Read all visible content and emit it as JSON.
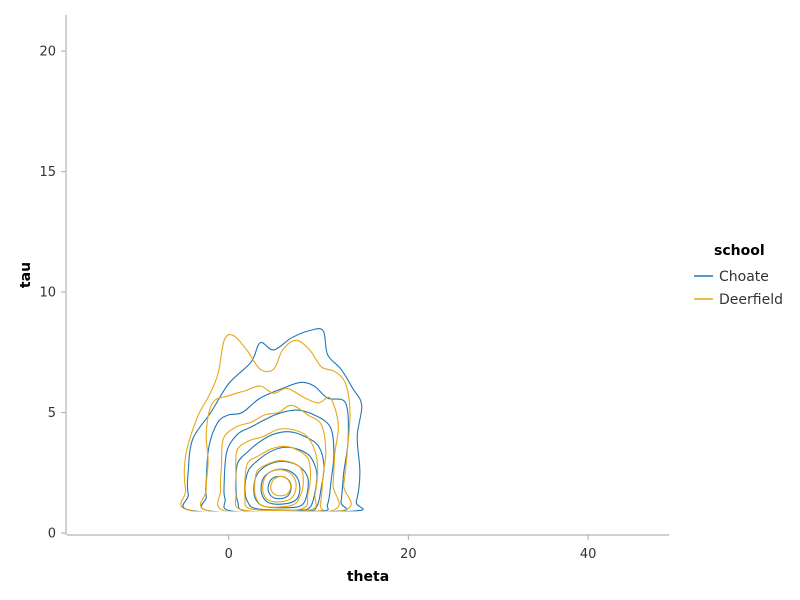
{
  "chart_data": {
    "type": "contour",
    "xlabel": "theta",
    "ylabel": "tau",
    "xlim": [
      -18,
      49
    ],
    "ylim": [
      0,
      21.5
    ],
    "x_ticks": [
      0,
      20,
      40
    ],
    "y_ticks": [
      0,
      5,
      10,
      15,
      20
    ],
    "grid": false,
    "legend": {
      "title": "school",
      "placement": "right"
    },
    "series": [
      {
        "name": "Choate",
        "color": "#1f77b4",
        "center": [
          5.5,
          1.95
        ],
        "clip_min_y": 0.9,
        "contours": [
          [
            [
              -4.5,
              2.6
            ],
            [
              -4,
              3.9
            ],
            [
              -2,
              5.0
            ],
            [
              0,
              6.2
            ],
            [
              2.5,
              7.1
            ],
            [
              3.5,
              7.9
            ],
            [
              5,
              7.6
            ],
            [
              7,
              8.1
            ],
            [
              9,
              8.4
            ],
            [
              10.5,
              8.4
            ],
            [
              11,
              7.4
            ],
            [
              12.5,
              6.8
            ],
            [
              13.8,
              6.0
            ],
            [
              14.8,
              5.3
            ],
            [
              14.3,
              4.0
            ],
            [
              14.6,
              2.5
            ],
            [
              14.2,
              1.3
            ],
            [
              13.5,
              0.9
            ],
            [
              -3.5,
              0.9
            ],
            [
              -4.5,
              1.6
            ]
          ],
          [
            [
              -2.5,
              2.2
            ],
            [
              -2.2,
              3.6
            ],
            [
              -1.2,
              4.6
            ],
            [
              0,
              4.9
            ],
            [
              1.5,
              5.0
            ],
            [
              3.5,
              5.6
            ],
            [
              6,
              6.0
            ],
            [
              8,
              6.25
            ],
            [
              9.5,
              6.1
            ],
            [
              11,
              5.6
            ],
            [
              13,
              5.4
            ],
            [
              13.3,
              3.9
            ],
            [
              12.8,
              2.5
            ],
            [
              12.5,
              1.3
            ],
            [
              12,
              0.9
            ],
            [
              -1.8,
              0.9
            ],
            [
              -2.5,
              1.5
            ]
          ],
          [
            [
              -0.5,
              2.1
            ],
            [
              -0.2,
              3.4
            ],
            [
              1,
              4.1
            ],
            [
              2.5,
              4.4
            ],
            [
              4,
              4.7
            ],
            [
              5.5,
              4.95
            ],
            [
              7.5,
              5.1
            ],
            [
              9.5,
              4.9
            ],
            [
              11.3,
              4.4
            ],
            [
              11.7,
              3.3
            ],
            [
              11.4,
              2.2
            ],
            [
              11,
              1.2
            ],
            [
              10,
              0.9
            ],
            [
              0.5,
              0.9
            ],
            [
              -0.4,
              1.4
            ]
          ],
          [
            [
              0.8,
              2.0
            ],
            [
              1.0,
              2.9
            ],
            [
              2.2,
              3.4
            ],
            [
              3.5,
              3.8
            ],
            [
              5,
              4.1
            ],
            [
              6.8,
              4.2
            ],
            [
              8.5,
              4.0
            ],
            [
              10,
              3.6
            ],
            [
              10.6,
              2.8
            ],
            [
              10.3,
              1.9
            ],
            [
              9.8,
              1.1
            ],
            [
              8.5,
              0.9
            ],
            [
              2,
              0.9
            ],
            [
              1,
              1.3
            ]
          ],
          [
            [
              1.8,
              1.9
            ],
            [
              2.2,
              2.6
            ],
            [
              3.2,
              3.0
            ],
            [
              4.5,
              3.35
            ],
            [
              6,
              3.55
            ],
            [
              7.5,
              3.5
            ],
            [
              9,
              3.2
            ],
            [
              9.8,
              2.5
            ],
            [
              9.6,
              1.7
            ],
            [
              9,
              1.05
            ],
            [
              7.5,
              0.95
            ],
            [
              3.2,
              1.0
            ],
            [
              2.1,
              1.3
            ]
          ],
          [
            [
              2.8,
              1.9
            ],
            [
              3.1,
              2.4
            ],
            [
              4,
              2.75
            ],
            [
              5.3,
              2.95
            ],
            [
              6.6,
              2.95
            ],
            [
              7.9,
              2.75
            ],
            [
              8.8,
              2.3
            ],
            [
              8.7,
              1.6
            ],
            [
              8.1,
              1.15
            ],
            [
              6.5,
              1.05
            ],
            [
              4,
              1.1
            ],
            [
              3,
              1.4
            ]
          ],
          [
            [
              3.6,
              1.9
            ],
            [
              3.9,
              2.3
            ],
            [
              4.7,
              2.55
            ],
            [
              5.8,
              2.65
            ],
            [
              6.9,
              2.55
            ],
            [
              7.7,
              2.25
            ],
            [
              7.9,
              1.75
            ],
            [
              7.4,
              1.35
            ],
            [
              6,
              1.2
            ],
            [
              4.5,
              1.25
            ],
            [
              3.8,
              1.5
            ]
          ],
          [
            [
              4.4,
              1.95
            ],
            [
              4.8,
              2.25
            ],
            [
              5.5,
              2.35
            ],
            [
              6.3,
              2.3
            ],
            [
              6.9,
              2.05
            ],
            [
              6.8,
              1.65
            ],
            [
              6.1,
              1.45
            ],
            [
              5.1,
              1.45
            ],
            [
              4.5,
              1.65
            ]
          ]
        ]
      },
      {
        "name": "Deerfield",
        "color": "#e6a817",
        "center": [
          5.8,
          2.0
        ],
        "clip_min_y": 0.9,
        "contours": [
          [
            [
              -4.8,
              3.2
            ],
            [
              -3.5,
              4.8
            ],
            [
              -2.2,
              5.7
            ],
            [
              -1.2,
              6.6
            ],
            [
              -0.5,
              8.0
            ],
            [
              0.5,
              8.2
            ],
            [
              2,
              7.6
            ],
            [
              3.5,
              6.8
            ],
            [
              5,
              6.8
            ],
            [
              6,
              7.6
            ],
            [
              7.5,
              8.0
            ],
            [
              9,
              7.6
            ],
            [
              10.3,
              6.9
            ],
            [
              11.8,
              6.7
            ],
            [
              13,
              6.2
            ],
            [
              13.5,
              5.0
            ],
            [
              13.2,
              3.4
            ],
            [
              12.8,
              2.0
            ],
            [
              12.3,
              0.9
            ],
            [
              -3.8,
              0.9
            ],
            [
              -4.8,
              1.8
            ]
          ],
          [
            [
              -2.3,
              3.0
            ],
            [
              -2.5,
              4.2
            ],
            [
              -1.8,
              5.4
            ],
            [
              0,
              5.7
            ],
            [
              1.8,
              5.9
            ],
            [
              3.5,
              6.1
            ],
            [
              5,
              5.8
            ],
            [
              6.5,
              6.0
            ],
            [
              8.5,
              5.6
            ],
            [
              10,
              5.4
            ],
            [
              11.3,
              5.6
            ],
            [
              12.2,
              4.5
            ],
            [
              11.8,
              3.3
            ],
            [
              11.6,
              2.0
            ],
            [
              11.2,
              0.9
            ],
            [
              -2,
              0.9
            ],
            [
              -2.5,
              1.8
            ]
          ],
          [
            [
              -0.8,
              2.8
            ],
            [
              -0.6,
              3.9
            ],
            [
              0.8,
              4.4
            ],
            [
              2.5,
              4.6
            ],
            [
              4,
              4.9
            ],
            [
              5.5,
              5.0
            ],
            [
              7,
              5.3
            ],
            [
              8.8,
              4.9
            ],
            [
              10.3,
              4.5
            ],
            [
              10.8,
              3.4
            ],
            [
              10.5,
              2.4
            ],
            [
              10.2,
              1.2
            ],
            [
              9.5,
              0.9
            ],
            [
              -0.3,
              0.9
            ],
            [
              -0.9,
              1.8
            ]
          ],
          [
            [
              0.8,
              2.4
            ],
            [
              0.9,
              3.4
            ],
            [
              2.1,
              3.8
            ],
            [
              3.8,
              4.0
            ],
            [
              5.5,
              4.3
            ],
            [
              7,
              4.3
            ],
            [
              8.6,
              4.05
            ],
            [
              9.6,
              3.4
            ],
            [
              9.9,
              2.6
            ],
            [
              9.6,
              1.6
            ],
            [
              9,
              0.95
            ],
            [
              1.6,
              0.95
            ],
            [
              0.8,
              1.6
            ]
          ],
          [
            [
              1.8,
              2.2
            ],
            [
              2.1,
              2.9
            ],
            [
              3.3,
              3.2
            ],
            [
              4.8,
              3.5
            ],
            [
              6.3,
              3.6
            ],
            [
              7.6,
              3.45
            ],
            [
              8.8,
              3.1
            ],
            [
              9.1,
              2.4
            ],
            [
              8.8,
              1.6
            ],
            [
              8.1,
              1.0
            ],
            [
              2.5,
              1.0
            ],
            [
              1.8,
              1.5
            ]
          ],
          [
            [
              2.9,
              2.1
            ],
            [
              3.2,
              2.6
            ],
            [
              4.3,
              2.85
            ],
            [
              5.6,
              3.0
            ],
            [
              6.8,
              2.95
            ],
            [
              8,
              2.7
            ],
            [
              8.3,
              2.1
            ],
            [
              7.9,
              1.5
            ],
            [
              7,
              1.15
            ],
            [
              4,
              1.1
            ],
            [
              3,
              1.5
            ]
          ],
          [
            [
              3.8,
              2.0
            ],
            [
              4.2,
              2.4
            ],
            [
              5.1,
              2.6
            ],
            [
              6.2,
              2.6
            ],
            [
              7.2,
              2.35
            ],
            [
              7.5,
              1.9
            ],
            [
              7,
              1.45
            ],
            [
              5.8,
              1.3
            ],
            [
              4.5,
              1.35
            ],
            [
              3.9,
              1.6
            ]
          ],
          [
            [
              4.7,
              2.0
            ],
            [
              5.1,
              2.25
            ],
            [
              5.8,
              2.35
            ],
            [
              6.5,
              2.25
            ],
            [
              6.9,
              1.95
            ],
            [
              6.6,
              1.65
            ],
            [
              5.9,
              1.55
            ],
            [
              5.1,
              1.6
            ],
            [
              4.7,
              1.8
            ]
          ]
        ]
      }
    ]
  }
}
